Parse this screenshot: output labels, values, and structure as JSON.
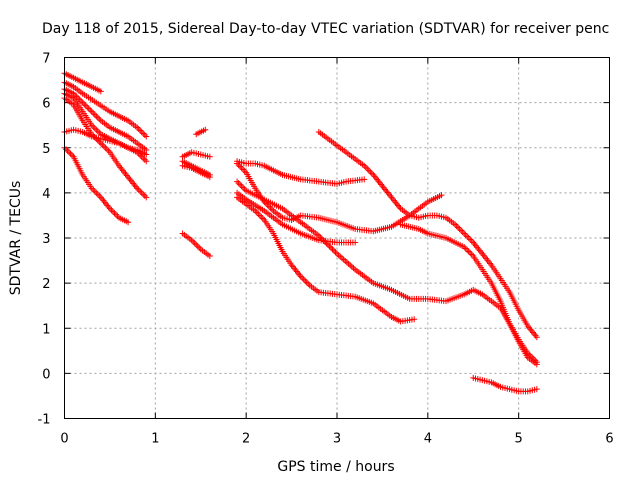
{
  "chart_data": {
    "type": "scatter",
    "title": "Day 118 of 2015, Sidereal Day-to-day VTEC variation (SDTVAR) for receiver penc",
    "xlabel": "GPS time / hours",
    "ylabel": "SDTVAR / TECUs",
    "xlim": [
      0,
      6
    ],
    "ylim": [
      -1,
      7
    ],
    "xticks": [
      0,
      1,
      2,
      3,
      4,
      5,
      6
    ],
    "yticks": [
      -1,
      0,
      1,
      2,
      3,
      4,
      5,
      6,
      7
    ],
    "grid": true,
    "marker": "plus",
    "color": "#ff0000",
    "series": [
      {
        "points": [
          [
            0.0,
            6.65
          ],
          [
            0.1,
            6.55
          ],
          [
            0.2,
            6.45
          ],
          [
            0.3,
            6.35
          ],
          [
            0.4,
            6.25
          ]
        ]
      },
      {
        "points": [
          [
            0.0,
            6.45
          ],
          [
            0.1,
            6.35
          ],
          [
            0.2,
            6.2
          ],
          [
            0.35,
            6.0
          ],
          [
            0.5,
            5.8
          ],
          [
            0.6,
            5.7
          ],
          [
            0.7,
            5.6
          ],
          [
            0.8,
            5.45
          ],
          [
            0.9,
            5.25
          ]
        ]
      },
      {
        "points": [
          [
            0.0,
            6.3
          ],
          [
            0.1,
            6.2
          ],
          [
            0.2,
            6.0
          ],
          [
            0.3,
            5.8
          ],
          [
            0.4,
            5.6
          ],
          [
            0.5,
            5.45
          ],
          [
            0.6,
            5.35
          ],
          [
            0.7,
            5.25
          ],
          [
            0.8,
            5.1
          ],
          [
            0.9,
            4.95
          ]
        ]
      },
      {
        "points": [
          [
            0.0,
            6.2
          ],
          [
            0.1,
            6.1
          ],
          [
            0.2,
            5.8
          ],
          [
            0.3,
            5.5
          ],
          [
            0.4,
            5.3
          ],
          [
            0.5,
            5.2
          ],
          [
            0.6,
            5.1
          ],
          [
            0.7,
            5.0
          ],
          [
            0.8,
            4.9
          ],
          [
            0.9,
            4.7
          ]
        ]
      },
      {
        "points": [
          [
            0.0,
            6.1
          ],
          [
            0.1,
            5.95
          ],
          [
            0.2,
            5.6
          ],
          [
            0.3,
            5.3
          ],
          [
            0.4,
            5.1
          ],
          [
            0.5,
            4.9
          ],
          [
            0.6,
            4.6
          ],
          [
            0.7,
            4.35
          ],
          [
            0.8,
            4.1
          ],
          [
            0.9,
            3.9
          ]
        ]
      },
      {
        "points": [
          [
            0.0,
            5.35
          ],
          [
            0.1,
            5.4
          ],
          [
            0.2,
            5.35
          ],
          [
            0.3,
            5.25
          ],
          [
            0.4,
            5.2
          ],
          [
            0.5,
            5.15
          ],
          [
            0.6,
            5.1
          ],
          [
            0.7,
            5.0
          ],
          [
            0.8,
            4.95
          ],
          [
            0.9,
            4.85
          ]
        ]
      },
      {
        "points": [
          [
            0.0,
            5.0
          ],
          [
            0.1,
            4.8
          ],
          [
            0.2,
            4.4
          ],
          [
            0.3,
            4.1
          ],
          [
            0.4,
            3.9
          ],
          [
            0.5,
            3.65
          ],
          [
            0.6,
            3.45
          ],
          [
            0.7,
            3.35
          ]
        ]
      },
      {
        "points": [
          [
            1.45,
            5.3
          ],
          [
            1.55,
            5.4
          ]
        ]
      },
      {
        "points": [
          [
            1.3,
            4.8
          ],
          [
            1.4,
            4.9
          ],
          [
            1.5,
            4.85
          ],
          [
            1.6,
            4.8
          ]
        ]
      },
      {
        "points": [
          [
            1.3,
            4.6
          ],
          [
            1.4,
            4.55
          ],
          [
            1.5,
            4.45
          ],
          [
            1.6,
            4.35
          ]
        ]
      },
      {
        "points": [
          [
            1.3,
            4.7
          ],
          [
            1.4,
            4.6
          ],
          [
            1.5,
            4.5
          ],
          [
            1.6,
            4.4
          ]
        ]
      },
      {
        "points": [
          [
            1.3,
            3.1
          ],
          [
            1.4,
            2.95
          ],
          [
            1.5,
            2.75
          ],
          [
            1.6,
            2.6
          ]
        ]
      },
      {
        "points": [
          [
            1.9,
            4.7
          ],
          [
            2.0,
            4.65
          ],
          [
            2.1,
            4.65
          ],
          [
            2.2,
            4.6
          ],
          [
            2.3,
            4.5
          ],
          [
            2.4,
            4.4
          ],
          [
            2.6,
            4.3
          ],
          [
            2.8,
            4.25
          ],
          [
            3.0,
            4.2
          ],
          [
            3.1,
            4.25
          ],
          [
            3.3,
            4.3
          ]
        ]
      },
      {
        "points": [
          [
            2.8,
            5.35
          ],
          [
            2.9,
            5.2
          ],
          [
            3.0,
            5.05
          ],
          [
            3.1,
            4.9
          ],
          [
            3.2,
            4.75
          ],
          [
            3.3,
            4.6
          ],
          [
            3.4,
            4.4
          ],
          [
            3.5,
            4.15
          ],
          [
            3.6,
            3.9
          ],
          [
            3.7,
            3.65
          ],
          [
            3.8,
            3.5
          ],
          [
            3.9,
            3.45
          ],
          [
            4.0,
            3.5
          ],
          [
            4.1,
            3.5
          ],
          [
            4.2,
            3.45
          ],
          [
            4.3,
            3.3
          ],
          [
            4.4,
            3.1
          ],
          [
            4.5,
            2.9
          ],
          [
            4.6,
            2.65
          ],
          [
            4.7,
            2.4
          ],
          [
            4.8,
            2.1
          ],
          [
            4.9,
            1.8
          ],
          [
            5.0,
            1.4
          ],
          [
            5.1,
            1.05
          ],
          [
            5.2,
            0.8
          ]
        ]
      },
      {
        "points": [
          [
            1.9,
            4.65
          ],
          [
            2.0,
            4.45
          ],
          [
            2.1,
            4.1
          ],
          [
            2.2,
            3.8
          ],
          [
            2.3,
            3.6
          ],
          [
            2.4,
            3.45
          ],
          [
            2.5,
            3.4
          ],
          [
            2.6,
            3.5
          ],
          [
            2.8,
            3.45
          ],
          [
            3.0,
            3.35
          ],
          [
            3.2,
            3.2
          ],
          [
            3.4,
            3.15
          ],
          [
            3.6,
            3.25
          ],
          [
            3.8,
            3.5
          ],
          [
            4.0,
            3.8
          ],
          [
            4.15,
            3.95
          ]
        ]
      },
      {
        "points": [
          [
            1.9,
            4.25
          ],
          [
            2.0,
            4.05
          ],
          [
            2.2,
            3.85
          ],
          [
            2.4,
            3.65
          ],
          [
            2.6,
            3.35
          ],
          [
            2.8,
            3.05
          ],
          [
            3.0,
            2.65
          ],
          [
            3.2,
            2.3
          ],
          [
            3.4,
            2.0
          ],
          [
            3.6,
            1.85
          ],
          [
            3.8,
            1.65
          ],
          [
            4.0,
            1.65
          ],
          [
            4.2,
            1.6
          ],
          [
            4.4,
            1.75
          ],
          [
            4.5,
            1.85
          ],
          [
            4.6,
            1.75
          ],
          [
            4.7,
            1.6
          ],
          [
            4.8,
            1.45
          ],
          [
            4.9,
            1.1
          ],
          [
            5.0,
            0.75
          ],
          [
            5.1,
            0.45
          ],
          [
            5.2,
            0.25
          ]
        ]
      },
      {
        "points": [
          [
            1.9,
            4.0
          ],
          [
            2.0,
            3.85
          ],
          [
            2.2,
            3.6
          ],
          [
            2.4,
            3.3
          ],
          [
            2.6,
            3.1
          ],
          [
            2.8,
            2.95
          ],
          [
            3.0,
            2.9
          ],
          [
            3.2,
            2.9
          ]
        ]
      },
      {
        "points": [
          [
            1.9,
            3.9
          ],
          [
            2.0,
            3.75
          ],
          [
            2.1,
            3.6
          ],
          [
            2.2,
            3.4
          ],
          [
            2.3,
            3.1
          ],
          [
            2.4,
            2.7
          ],
          [
            2.5,
            2.4
          ],
          [
            2.6,
            2.15
          ],
          [
            2.7,
            1.95
          ],
          [
            2.8,
            1.8
          ],
          [
            3.0,
            1.75
          ],
          [
            3.2,
            1.7
          ],
          [
            3.4,
            1.55
          ],
          [
            3.5,
            1.4
          ],
          [
            3.6,
            1.25
          ],
          [
            3.7,
            1.15
          ],
          [
            3.85,
            1.2
          ]
        ]
      },
      {
        "points": [
          [
            3.7,
            3.3
          ],
          [
            3.9,
            3.2
          ],
          [
            4.0,
            3.1
          ],
          [
            4.2,
            3.0
          ],
          [
            4.4,
            2.8
          ],
          [
            4.5,
            2.6
          ],
          [
            4.6,
            2.3
          ],
          [
            4.7,
            2.0
          ],
          [
            4.8,
            1.6
          ],
          [
            4.9,
            1.1
          ],
          [
            5.0,
            0.7
          ],
          [
            5.1,
            0.35
          ],
          [
            5.2,
            0.2
          ]
        ]
      },
      {
        "points": [
          [
            4.5,
            -0.1
          ],
          [
            4.6,
            -0.15
          ],
          [
            4.7,
            -0.2
          ],
          [
            4.8,
            -0.3
          ],
          [
            4.9,
            -0.35
          ],
          [
            5.0,
            -0.4
          ],
          [
            5.1,
            -0.4
          ],
          [
            5.2,
            -0.35
          ]
        ]
      }
    ]
  }
}
